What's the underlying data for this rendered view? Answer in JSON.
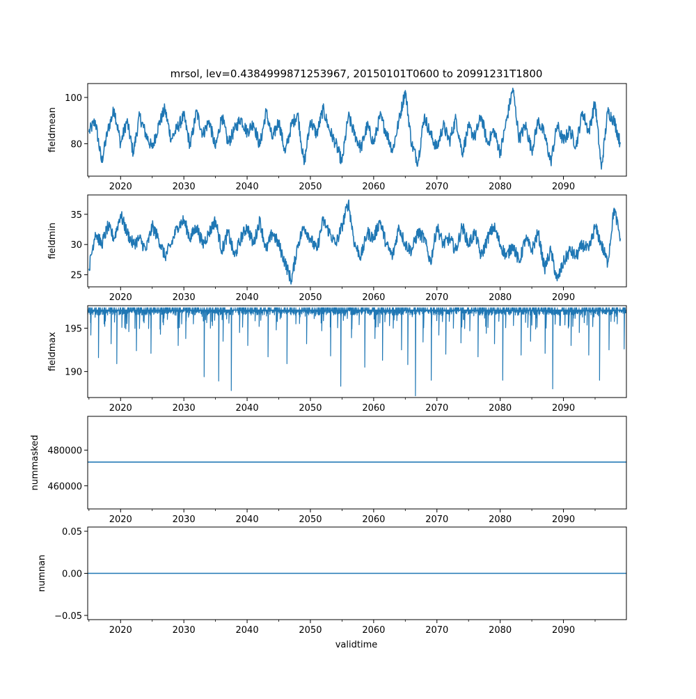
{
  "figure": {
    "title": "mrsol, lev=0.4384999871253967, 20150101T0600 to 20991231T1800",
    "xlabel": "validtime",
    "series_color": "#1f77b4"
  },
  "chart_data": [
    {
      "type": "line",
      "name": "fieldmean",
      "ylabel": "fieldmean",
      "xlim": [
        2014.8,
        2099.95
      ],
      "ylim": [
        66,
        106
      ],
      "x_ticks": [
        2020,
        2030,
        2040,
        2050,
        2060,
        2070,
        2080,
        2090
      ],
      "x_tick_labels": [
        "2020",
        "2030",
        "2040",
        "2050",
        "2060",
        "2070",
        "2080",
        "2090"
      ],
      "y_ticks": [
        80,
        100
      ],
      "y_tick_labels": [
        "80",
        "100"
      ],
      "x": [
        2015,
        2016,
        2017,
        2018,
        2019,
        2020,
        2021,
        2022,
        2023,
        2024,
        2025,
        2026,
        2027,
        2028,
        2029,
        2030,
        2031,
        2032,
        2033,
        2034,
        2035,
        2036,
        2037,
        2038,
        2039,
        2040,
        2041,
        2042,
        2043,
        2044,
        2045,
        2046,
        2047,
        2048,
        2049,
        2050,
        2051,
        2052,
        2053,
        2054,
        2055,
        2056,
        2057,
        2058,
        2059,
        2060,
        2061,
        2062,
        2063,
        2064,
        2065,
        2066,
        2067,
        2068,
        2069,
        2070,
        2071,
        2072,
        2073,
        2074,
        2075,
        2076,
        2077,
        2078,
        2079,
        2080,
        2081,
        2082,
        2083,
        2084,
        2085,
        2086,
        2087,
        2088,
        2089,
        2090,
        2091,
        2092,
        2093,
        2094,
        2095,
        2096,
        2097,
        2098,
        2099
      ],
      "y": [
        85,
        90,
        72,
        86,
        95,
        80,
        90,
        76,
        92,
        84,
        78,
        88,
        95,
        82,
        87,
        92,
        79,
        94,
        84,
        90,
        78,
        92,
        80,
        86,
        91,
        85,
        89,
        79,
        94,
        82,
        90,
        76,
        88,
        93,
        71,
        90,
        84,
        95,
        86,
        80,
        72,
        92,
        84,
        78,
        88,
        80,
        92,
        85,
        77,
        90,
        103,
        80,
        72,
        92,
        84,
        78,
        88,
        81,
        91,
        76,
        87,
        83,
        92,
        80,
        86,
        76,
        90,
        104,
        82,
        88,
        77,
        90,
        84,
        72,
        88,
        81,
        86,
        79,
        94,
        85,
        98,
        69,
        94,
        90,
        80
      ]
    },
    {
      "type": "line",
      "name": "fieldmin",
      "ylabel": "fieldmin",
      "xlim": [
        2014.8,
        2099.95
      ],
      "ylim": [
        23,
        38.2
      ],
      "x_ticks": [
        2020,
        2030,
        2040,
        2050,
        2060,
        2070,
        2080,
        2090
      ],
      "x_tick_labels": [
        "2020",
        "2030",
        "2040",
        "2050",
        "2060",
        "2070",
        "2080",
        "2090"
      ],
      "y_ticks": [
        25,
        30,
        35
      ],
      "y_tick_labels": [
        "25",
        "30",
        "35"
      ],
      "x": [
        2015,
        2016,
        2017,
        2018,
        2019,
        2020,
        2021,
        2022,
        2023,
        2024,
        2025,
        2026,
        2027,
        2028,
        2029,
        2030,
        2031,
        2032,
        2033,
        2034,
        2035,
        2036,
        2037,
        2038,
        2039,
        2040,
        2041,
        2042,
        2043,
        2044,
        2045,
        2046,
        2047,
        2048,
        2049,
        2050,
        2051,
        2052,
        2053,
        2054,
        2055,
        2056,
        2057,
        2058,
        2059,
        2060,
        2061,
        2062,
        2063,
        2064,
        2065,
        2066,
        2067,
        2068,
        2069,
        2070,
        2071,
        2072,
        2073,
        2074,
        2075,
        2076,
        2077,
        2078,
        2079,
        2080,
        2081,
        2082,
        2083,
        2084,
        2085,
        2086,
        2087,
        2088,
        2089,
        2090,
        2091,
        2092,
        2093,
        2094,
        2095,
        2096,
        2097,
        2098,
        2099
      ],
      "y": [
        26,
        32,
        30,
        33,
        31,
        35,
        32,
        30,
        31,
        29,
        33,
        31,
        28,
        30,
        33,
        34,
        31,
        33,
        30,
        32,
        34,
        29,
        32,
        28,
        31,
        33,
        30,
        34,
        29,
        32,
        30,
        27,
        24,
        30,
        33,
        31,
        29,
        34,
        32,
        30,
        33,
        37,
        30,
        28,
        32,
        31,
        34,
        30,
        28,
        33,
        30,
        29,
        32,
        31,
        27,
        33,
        30,
        31,
        29,
        33,
        30,
        32,
        28,
        31,
        33,
        30,
        28,
        30,
        27,
        31,
        29,
        32,
        26,
        29,
        24,
        27,
        29,
        28,
        30,
        29,
        33,
        30,
        27,
        36,
        31
      ]
    },
    {
      "type": "line",
      "name": "fieldmax",
      "ylabel": "fieldmax",
      "xlim": [
        2014.8,
        2099.95
      ],
      "ylim": [
        187,
        197.6
      ],
      "x_ticks": [
        2020,
        2030,
        2040,
        2050,
        2060,
        2070,
        2080,
        2090
      ],
      "x_tick_labels": [
        "2020",
        "2030",
        "2040",
        "2050",
        "2060",
        "2070",
        "2080",
        "2090"
      ],
      "y_ticks": [
        190,
        195
      ],
      "y_tick_labels": [
        "190",
        "195"
      ],
      "baseline": 197.1,
      "dips_x": [
        2015.3,
        2016.5,
        2017.4,
        2018.5,
        2019.4,
        2021.3,
        2022.5,
        2023.6,
        2024.8,
        2026.3,
        2027.4,
        2029.1,
        2030.3,
        2031.5,
        2033.2,
        2034.2,
        2035.5,
        2036.2,
        2037.5,
        2038.8,
        2040.1,
        2041.9,
        2043.3,
        2044.6,
        2046.3,
        2047.7,
        2049.4,
        2050.6,
        2051.8,
        2053.2,
        2054.8,
        2056.5,
        2057.7,
        2058.6,
        2060.2,
        2061.4,
        2063.1,
        2064.4,
        2065.4,
        2066.6,
        2067.8,
        2069.1,
        2070.3,
        2071.4,
        2072.6,
        2073.8,
        2075.2,
        2076.5,
        2077.8,
        2079.1,
        2080.4,
        2082.1,
        2083.3,
        2084.8,
        2085.6,
        2087.1,
        2088.3,
        2089.5,
        2091.2,
        2092.5,
        2094.0,
        2095.7,
        2097.2,
        2098.5,
        2099.6
      ],
      "dips_y": [
        194.2,
        191.6,
        195.5,
        193.2,
        190.9,
        194.6,
        192.4,
        195.8,
        192.1,
        194.3,
        196.0,
        193.0,
        193.8,
        195.5,
        189.4,
        195.0,
        188.9,
        193.5,
        187.8,
        194.5,
        193.0,
        195.2,
        191.7,
        194.8,
        190.9,
        195.5,
        193.2,
        196.1,
        194.7,
        191.8,
        188.3,
        193.9,
        195.4,
        190.5,
        193.8,
        191.3,
        195.0,
        192.5,
        190.8,
        187.2,
        193.4,
        189.0,
        194.2,
        192.0,
        195.0,
        193.3,
        194.7,
        191.7,
        194.4,
        193.2,
        189.0,
        195.3,
        191.9,
        193.5,
        194.9,
        192.1,
        188.0,
        195.3,
        193.0,
        194.5,
        191.9,
        189.0,
        192.5,
        195.5,
        192.6
      ]
    },
    {
      "type": "line",
      "name": "nummasked",
      "ylabel": "nummasked",
      "xlim": [
        2014.8,
        2099.95
      ],
      "ylim": [
        447000,
        499000
      ],
      "x_ticks": [
        2020,
        2030,
        2040,
        2050,
        2060,
        2070,
        2080,
        2090
      ],
      "x_tick_labels": [
        "2020",
        "2030",
        "2040",
        "2050",
        "2060",
        "2070",
        "2080",
        "2090"
      ],
      "y_ticks": [
        460000,
        480000
      ],
      "y_tick_labels": [
        "460000",
        "480000"
      ],
      "x": [
        2014.8,
        2099.95
      ],
      "y": [
        473300,
        473300
      ]
    },
    {
      "type": "line",
      "name": "numnan",
      "ylabel": "numnan",
      "xlim": [
        2014.8,
        2099.95
      ],
      "ylim": [
        -0.055,
        0.055
      ],
      "x_ticks": [
        2020,
        2030,
        2040,
        2050,
        2060,
        2070,
        2080,
        2090
      ],
      "x_tick_labels": [
        "2020",
        "2030",
        "2040",
        "2050",
        "2060",
        "2070",
        "2080",
        "2090"
      ],
      "y_ticks": [
        -0.05,
        0.0,
        0.05
      ],
      "y_tick_labels": [
        "−0.05",
        "0.00",
        "0.05"
      ],
      "x": [
        2014.8,
        2099.95
      ],
      "y": [
        0,
        0
      ]
    }
  ]
}
